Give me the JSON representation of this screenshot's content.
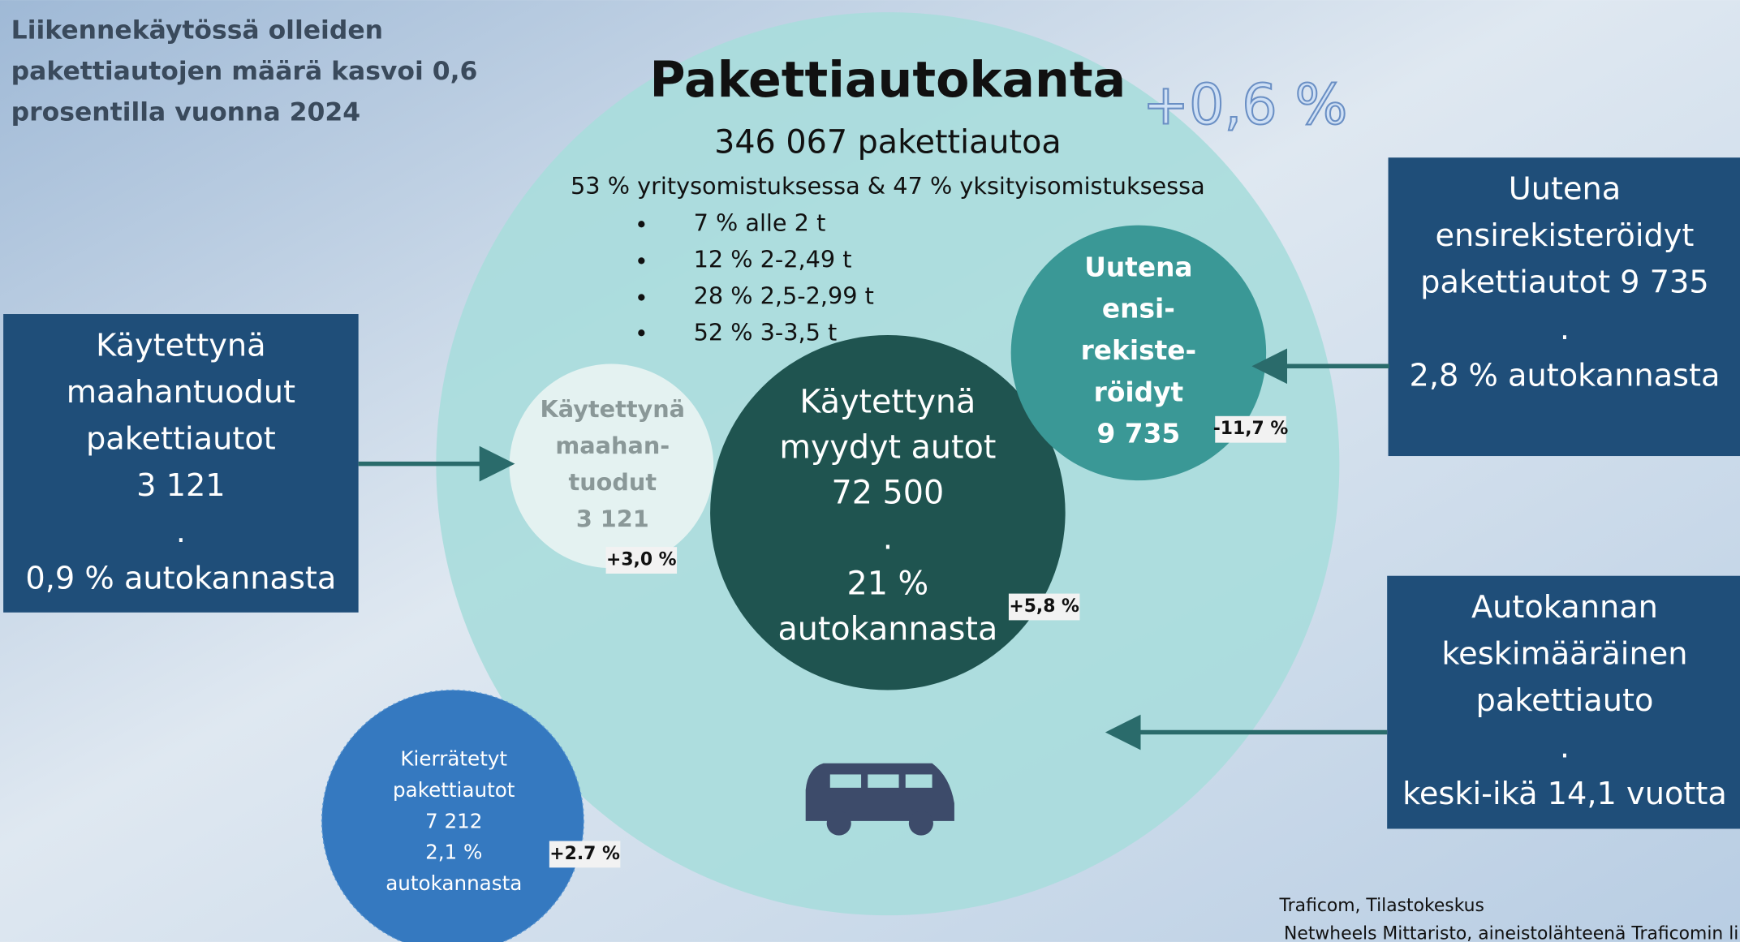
{
  "headline": [
    "Liikennekäytössä olleiden",
    "pakettiautojen määrä kasvoi 0,6",
    "prosentilla vuonna 2024"
  ],
  "main": {
    "title": "Pakettiautokanta",
    "change": "+0,6 %",
    "total": "346 067 pakettiautoa",
    "ownership": "53 % yritysomistuksessa & 47 % yksityisomistuksessa",
    "weights": [
      "7 % alle 2 t",
      "12 % 2-2,49 t",
      "28 % 2,5-2,99 t",
      "52 % 3-3,5 t"
    ]
  },
  "circles": {
    "imported": {
      "lines": [
        "Käytettynä",
        "maahan-",
        "tuodut",
        "3 121"
      ],
      "change": "+3,0 %"
    },
    "used_sold": {
      "lines": [
        "Käytettynä",
        "myydyt autot",
        "72 500",
        ".",
        "21 %",
        "autokannasta"
      ],
      "change": "+5,8 %"
    },
    "new": {
      "lines": [
        "Uutena",
        "ensi-",
        "rekiste-",
        "röidyt",
        "9 735"
      ],
      "change": "-11,7 %"
    },
    "scrapped": {
      "lines": [
        "Kierrätetyt",
        "pakettiautot",
        "7 212",
        "2,1 %",
        "autokannasta"
      ],
      "change": "+2.7 %"
    }
  },
  "boxes": {
    "imported": [
      "Käytettynä",
      "maahantuodut",
      "pakettiautot",
      "3 121",
      ".",
      "0,9 % autokannasta"
    ],
    "new": [
      "Uutena",
      "ensirekisteröidyt",
      "pakettiautot 9 735",
      ".",
      "2,8 % autokannasta"
    ],
    "average": [
      "Autokannan",
      "keskimääräinen",
      "pakettiauto",
      ".",
      "keski-ikä 14,1 vuotta"
    ]
  },
  "source": [
    "Traficom, Tilastokeskus",
    "Netwheels Mittaristo, aineistolähteenä Traficomin li"
  ]
}
